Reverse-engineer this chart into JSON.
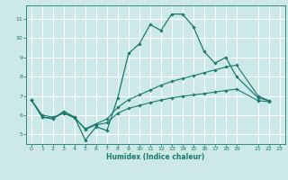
{
  "background_color": "#cce8e8",
  "grid_color": "#ffffff",
  "line_color": "#1a7a6e",
  "xlabel": "Humidex (Indice chaleur)",
  "xlim": [
    -0.5,
    23.5
  ],
  "ylim": [
    4.5,
    11.7
  ],
  "xticks": [
    0,
    1,
    2,
    3,
    4,
    5,
    6,
    7,
    8,
    9,
    10,
    11,
    12,
    13,
    14,
    15,
    16,
    17,
    18,
    19,
    21,
    22,
    23
  ],
  "yticks": [
    5,
    6,
    7,
    8,
    9,
    10,
    11
  ],
  "curve1_x": [
    0,
    1,
    2,
    3,
    4,
    5,
    6,
    7,
    8,
    9,
    10,
    11,
    12,
    13,
    14,
    15,
    16,
    17,
    18,
    19,
    21,
    22,
    23
  ],
  "curve1_y": [
    6.8,
    5.9,
    5.8,
    6.2,
    5.9,
    4.7,
    5.4,
    5.2,
    6.9,
    9.2,
    9.7,
    10.7,
    10.4,
    11.25,
    11.25,
    10.6,
    9.3,
    8.7,
    9.0,
    8.0,
    6.9,
    6.75,
    null
  ],
  "curve2_x": [
    0,
    1,
    2,
    3,
    4,
    5,
    6,
    7,
    8,
    9,
    10,
    11,
    12,
    13,
    14,
    15,
    16,
    17,
    18,
    19,
    21,
    22,
    23
  ],
  "curve2_y": [
    6.8,
    5.9,
    5.85,
    6.1,
    5.85,
    5.3,
    5.55,
    5.8,
    6.4,
    6.8,
    7.05,
    7.3,
    7.55,
    7.75,
    7.9,
    8.05,
    8.2,
    8.35,
    8.5,
    8.6,
    7.0,
    6.75,
    null
  ],
  "curve3_x": [
    0,
    1,
    2,
    3,
    4,
    5,
    6,
    7,
    8,
    9,
    10,
    11,
    12,
    13,
    14,
    15,
    16,
    17,
    18,
    19,
    21,
    22,
    23
  ],
  "curve3_y": [
    6.8,
    6.0,
    5.9,
    6.1,
    5.9,
    5.25,
    5.5,
    5.6,
    6.1,
    6.35,
    6.5,
    6.65,
    6.78,
    6.9,
    6.98,
    7.05,
    7.12,
    7.2,
    7.28,
    7.35,
    6.75,
    6.7,
    null
  ]
}
